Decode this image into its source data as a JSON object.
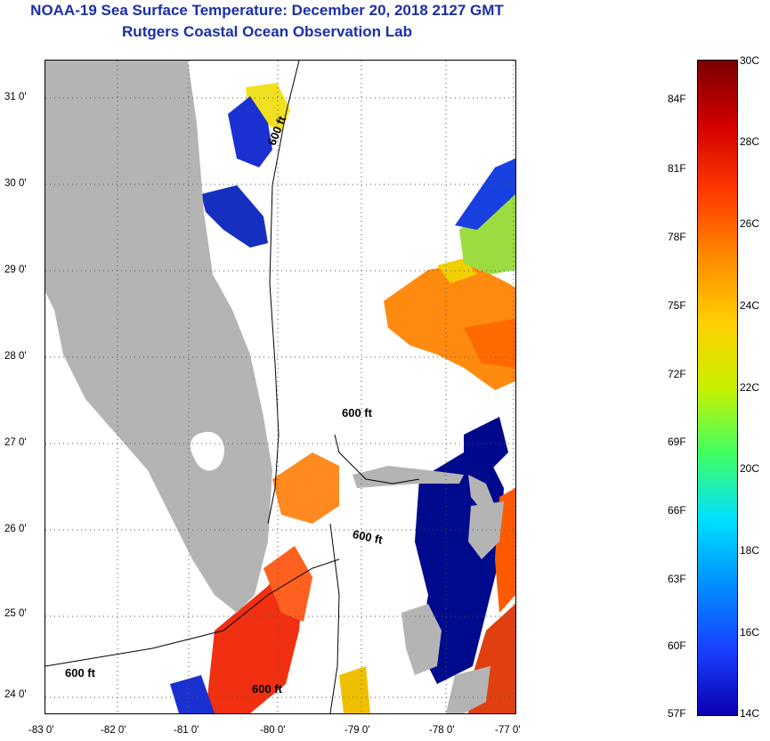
{
  "header": {
    "title": "NOAA-19 Sea Surface Temperature:  December 20, 2018 2127 GMT",
    "subtitle": "Rutgers Coastal Ocean Observation Lab"
  },
  "map": {
    "lat_labels": [
      "31 0'",
      "30 0'",
      "29 0'",
      "28 0'",
      "27 0'",
      "26 0'",
      "25 0'",
      "24 0'"
    ],
    "lon_labels": [
      "-83 0'",
      "-82 0'",
      "-81 0'",
      "-80 0'",
      "-79 0'",
      "-78 0'",
      "-77 0'"
    ],
    "isobath_labels": [
      "600 ft",
      "600 ft",
      "600 ft",
      "600 ft",
      "600 ft"
    ],
    "colors": {
      "land": "#b4b4b4",
      "cloud": "#ffffff",
      "grid": "#555555"
    }
  },
  "colorbar": {
    "celsius_labels": [
      "30C",
      "28C",
      "26C",
      "24C",
      "22C",
      "20C",
      "18C",
      "16C",
      "14C"
    ],
    "fahrenheit_labels": [
      "84F",
      "81F",
      "78F",
      "75F",
      "72F",
      "69F",
      "66F",
      "63F",
      "60F",
      "57F"
    ],
    "gradient_colors": [
      "#7a0000",
      "#d40000",
      "#ff3a00",
      "#ff8a00",
      "#ffd000",
      "#c8f000",
      "#40ff60",
      "#00e0ff",
      "#0090ff",
      "#1a40ff",
      "#0a00b0"
    ]
  }
}
